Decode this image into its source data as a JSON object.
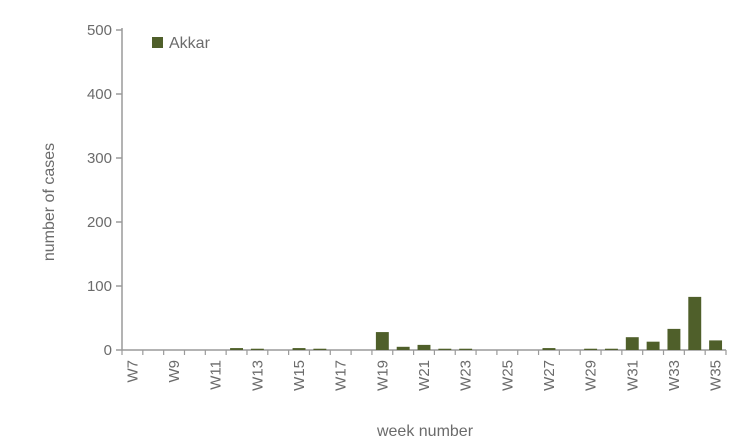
{
  "chart_data": {
    "type": "bar",
    "title": "",
    "xlabel": "week number",
    "ylabel": "number of cases",
    "ylim": [
      0,
      500
    ],
    "yticks": [
      0,
      100,
      200,
      300,
      400,
      500
    ],
    "grid": false,
    "legend_position": "top-left",
    "categories": [
      "W7",
      "W8",
      "W9",
      "W10",
      "W11",
      "W12",
      "W13",
      "W14",
      "W15",
      "W16",
      "W17",
      "W18",
      "W19",
      "W20",
      "W21",
      "W22",
      "W23",
      "W24",
      "W25",
      "W26",
      "W27",
      "W28",
      "W29",
      "W30",
      "W31",
      "W32",
      "W33",
      "W34",
      "W35"
    ],
    "visible_tick_labels": [
      "W7",
      "W9",
      "W11",
      "W13",
      "W15",
      "W17",
      "W19",
      "W21",
      "W23",
      "W25",
      "W27",
      "W29",
      "W31",
      "W33",
      "W35"
    ],
    "series": [
      {
        "name": "Akkar",
        "color": "#4f5f2a",
        "values": [
          0,
          0,
          0,
          0,
          0,
          3,
          2,
          0,
          3,
          2,
          0,
          0,
          28,
          5,
          8,
          2,
          2,
          0,
          0,
          0,
          3,
          0,
          2,
          2,
          20,
          13,
          33,
          83,
          15
        ]
      }
    ]
  }
}
